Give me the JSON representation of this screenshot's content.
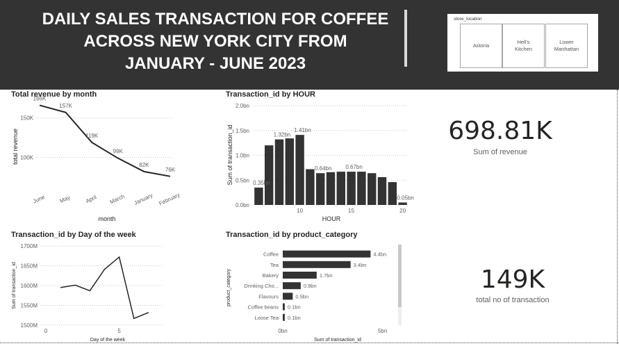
{
  "header": {
    "title_line1": "DAILY SALES TRANSACTION FOR COFFEE",
    "title_line2": "ACROSS NEW YORK CITY FROM",
    "title_line3": "JANUARY - JUNE 2023"
  },
  "slicer": {
    "title": "store_location",
    "options": [
      {
        "label_line1": "Astoria",
        "label_line2": ""
      },
      {
        "label_line1": "Hell's",
        "label_line2": "Kitchen"
      },
      {
        "label_line1": "Lower",
        "label_line2": "Manhattan"
      }
    ]
  },
  "cards": {
    "revenue": {
      "value": "698.81K",
      "label": "Sum of revenue"
    },
    "transactions": {
      "value": "149K",
      "label": "total no of transaction"
    }
  },
  "chart_data": [
    {
      "id": "revenue_by_month",
      "type": "line",
      "title": "Total revenue by month",
      "xlabel": "month",
      "ylabel": "total revenue",
      "categories": [
        "June",
        "May",
        "April",
        "March",
        "January",
        "February"
      ],
      "values": [
        166,
        157,
        119,
        99,
        82,
        76
      ],
      "data_labels": [
        "166K",
        "157K",
        "119K",
        "99K",
        "82K",
        "76K"
      ],
      "ylim": [
        60,
        170
      ],
      "yticks": [
        {
          "value": 100,
          "label": "100K"
        },
        {
          "value": 150,
          "label": "150K"
        }
      ],
      "grid": true,
      "color": "#252423"
    },
    {
      "id": "transactions_by_hour",
      "type": "bar",
      "title": "Transaction_id by HOUR",
      "xlabel": "HOUR",
      "ylabel": "Sum of transaction_id",
      "x": [
        6,
        7,
        8,
        9,
        10,
        11,
        12,
        13,
        14,
        15,
        16,
        17,
        18,
        19,
        20
      ],
      "values": [
        0.35,
        1.2,
        1.32,
        1.34,
        1.41,
        0.72,
        0.64,
        0.66,
        0.67,
        0.67,
        0.67,
        0.64,
        0.56,
        0.46,
        0.05
      ],
      "data_labels": [
        {
          "index": 0,
          "label": "0.35bn"
        },
        {
          "index": 2,
          "label": "1.32bn"
        },
        {
          "index": 4,
          "label": "1.41bn"
        },
        {
          "index": 6,
          "label": "0.64bn"
        },
        {
          "index": 9,
          "label": "0.67bn"
        },
        {
          "index": 14,
          "label": "0.05bn"
        }
      ],
      "ylim": [
        0,
        2.0
      ],
      "yticks": [
        {
          "value": 0,
          "label": "0.0bn"
        },
        {
          "value": 0.5,
          "label": "0.5bn"
        },
        {
          "value": 1.0,
          "label": "1.0bn"
        },
        {
          "value": 1.5,
          "label": "1.5bn"
        },
        {
          "value": 2.0,
          "label": "2.0bn"
        }
      ],
      "xticks": [
        10,
        15,
        20
      ],
      "xlim": [
        5.5,
        20.5
      ],
      "grid": true,
      "color": "#333333"
    },
    {
      "id": "transactions_by_weekday",
      "type": "line",
      "title": "Transaction_id by Day of the week",
      "xlabel": "Day of the week",
      "ylabel": "Sum of transaction_id",
      "x": [
        1,
        2,
        3,
        4,
        5,
        6,
        7
      ],
      "values": [
        1595,
        1601,
        1587,
        1641,
        1672,
        1517,
        1532
      ],
      "ylim": [
        1500,
        1700
      ],
      "xlim": [
        0,
        8
      ],
      "yticks": [
        {
          "value": 1500,
          "label": "1500M"
        },
        {
          "value": 1550,
          "label": "1550M"
        },
        {
          "value": 1600,
          "label": "1600M"
        },
        {
          "value": 1650,
          "label": "1650M"
        },
        {
          "value": 1700,
          "label": "1700M"
        }
      ],
      "xticks": [
        0,
        5
      ],
      "grid": true,
      "color": "#252423"
    },
    {
      "id": "transactions_by_category",
      "type": "bar",
      "orientation": "horizontal",
      "title": "Transaction_id by product_category",
      "xlabel": "Sum of transaction_id",
      "ylabel": "product_category",
      "categories": [
        "Coffee",
        "Tea",
        "Bakery",
        "Drinking Cho...",
        "Flavours",
        "Coffee beans",
        "Loose Tea"
      ],
      "values": [
        4.4,
        3.4,
        1.7,
        0.9,
        0.5,
        0.1,
        0.1
      ],
      "data_labels": [
        "4.4bn",
        "3.4bn",
        "1.7bn",
        "0.9bn",
        "0.5bn",
        "0.1bn",
        "0.1bn"
      ],
      "xlim": [
        0,
        5.5
      ],
      "xticks": [
        {
          "value": 0,
          "label": "0bn"
        },
        {
          "value": 5,
          "label": "5bn"
        }
      ],
      "color": "#333333"
    }
  ]
}
